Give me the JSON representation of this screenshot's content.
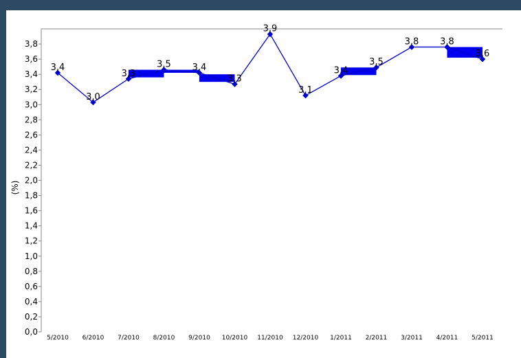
{
  "chart_data": {
    "type": "line",
    "categories": [
      "5/2010",
      "6/2010",
      "7/2010",
      "8/2010",
      "9/2010",
      "10/2010",
      "11/2010",
      "12/2010",
      "1/2011",
      "2/2011",
      "3/2011",
      "4/2011",
      "5/2011"
    ],
    "values": [
      3.42,
      3.03,
      3.34,
      3.46,
      3.42,
      3.27,
      3.93,
      3.12,
      3.38,
      3.49,
      3.76,
      3.76,
      3.6
    ],
    "data_labels": [
      "3,4",
      "3,0",
      "3,3",
      "3,5",
      "3,4",
      "3,3",
      "3,9",
      "3,1",
      "3,4",
      "3,5",
      "3,8",
      "3,8",
      "3,6"
    ],
    "bands": [
      {
        "from_index": 2,
        "to_index": 3,
        "low": 3.36,
        "high": 3.46
      },
      {
        "from_index": 3,
        "to_index": 4,
        "low": 3.42,
        "high": 3.46
      },
      {
        "from_index": 4,
        "to_index": 5,
        "low": 3.3,
        "high": 3.4
      },
      {
        "from_index": 8,
        "to_index": 9,
        "low": 3.39,
        "high": 3.49
      },
      {
        "from_index": 11,
        "to_index": 12,
        "low": 3.62,
        "high": 3.76
      }
    ],
    "ylabel": "(%)",
    "ylim": [
      0,
      4
    ],
    "yticks": [
      0,
      0.2,
      0.4,
      0.6,
      0.8,
      1.0,
      1.2,
      1.4,
      1.6,
      1.8,
      2.0,
      2.2,
      2.4,
      2.6,
      2.8,
      3.0,
      3.2,
      3.4,
      3.6,
      3.8
    ],
    "ytick_labels": [
      "0,0",
      "0,2",
      "0,4",
      "0,6",
      "0,8",
      "1,0",
      "1,2",
      "1,4",
      "1,6",
      "1,8",
      "2,0",
      "2,2",
      "2,4",
      "2,6",
      "2,8",
      "3,0",
      "3,2",
      "3,4",
      "3,6",
      "3,8"
    ],
    "colors": {
      "line": "#0000cc",
      "band": "#0000ee",
      "axis": "#888888",
      "background": "#2c4a63"
    },
    "grid": false,
    "legend": "none"
  }
}
